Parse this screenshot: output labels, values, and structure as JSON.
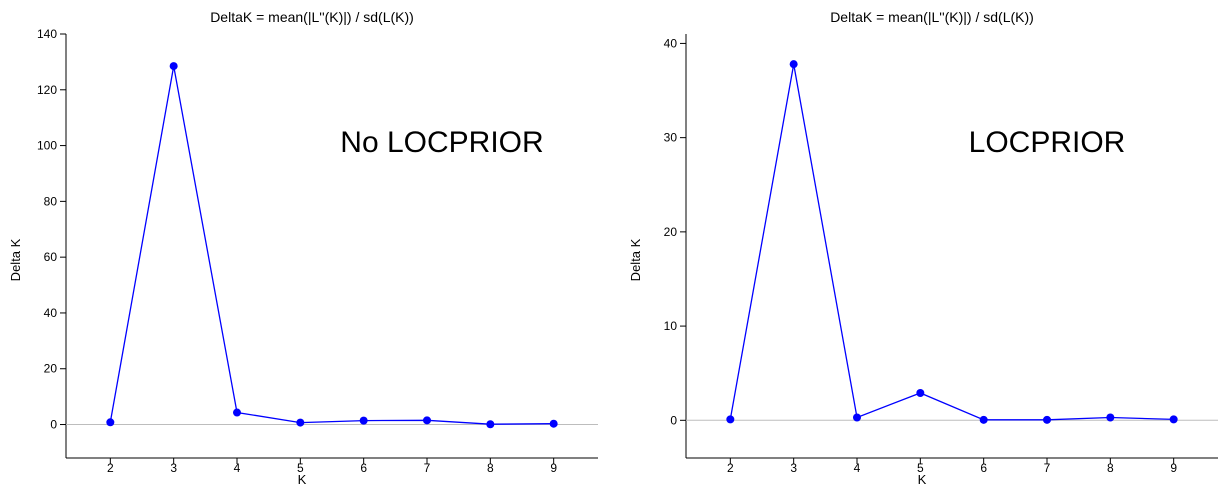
{
  "chart_data": [
    {
      "type": "line",
      "title": "DeltaK = mean(|L''(K)|) / sd(L(K))",
      "xlabel": "K",
      "ylabel": "Delta K",
      "annotation": "No LOCPRIOR",
      "x": [
        2,
        3,
        4,
        5,
        6,
        7,
        8,
        9
      ],
      "series": [
        {
          "values": [
            0.8,
            128.5,
            4.3,
            0.7,
            1.4,
            1.5,
            0.1,
            0.3
          ]
        }
      ],
      "xlim": [
        1.3,
        9.7
      ],
      "ylim": [
        -12,
        140
      ],
      "xticks": [
        "2",
        "3",
        "4",
        "5",
        "6",
        "7",
        "8",
        "9"
      ],
      "yticks": [
        "0",
        "20",
        "40",
        "60",
        "80",
        "100",
        "120",
        "140"
      ],
      "reference_line_y": 0,
      "grid": false,
      "color": "#0000ff"
    },
    {
      "type": "line",
      "title": "DeltaK = mean(|L''(K)|) / sd(L(K))",
      "xlabel": "K",
      "ylabel": "Delta K",
      "annotation": "LOCPRIOR",
      "x": [
        2,
        3,
        4,
        5,
        6,
        7,
        8,
        9
      ],
      "series": [
        {
          "values": [
            0.1,
            37.8,
            0.3,
            2.9,
            0.05,
            0.05,
            0.3,
            0.1
          ]
        }
      ],
      "xlim": [
        1.3,
        9.7
      ],
      "ylim": [
        -4,
        41
      ],
      "xticks": [
        "2",
        "3",
        "4",
        "5",
        "6",
        "7",
        "8",
        "9"
      ],
      "yticks": [
        "0",
        "10",
        "20",
        "30",
        "40"
      ],
      "reference_line_y": 0,
      "grid": false,
      "color": "#0000ff"
    }
  ]
}
